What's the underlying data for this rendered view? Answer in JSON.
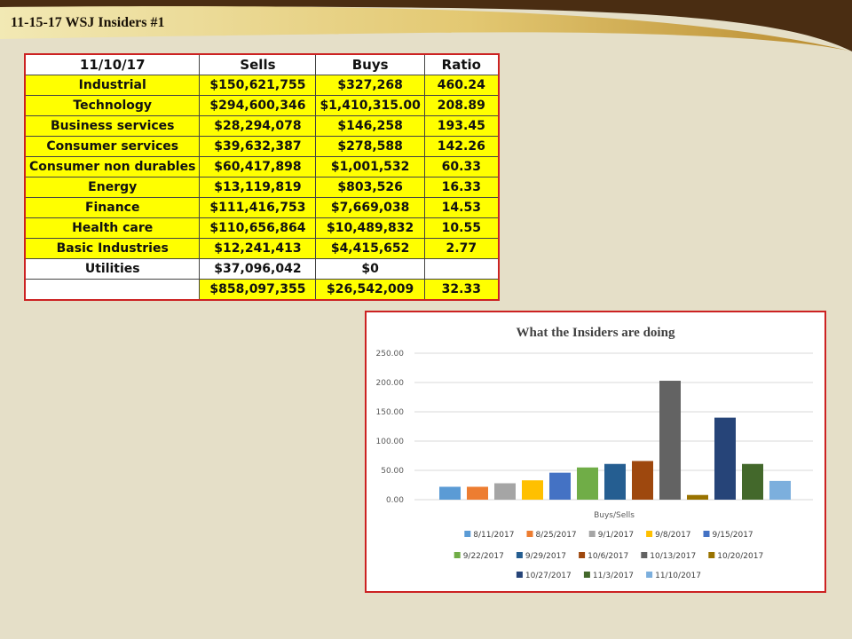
{
  "slide": {
    "title": "11-15-17 WSJ Insiders #1"
  },
  "table": {
    "headers": [
      "11/10/17",
      "Sells",
      "Buys",
      "Ratio"
    ],
    "rows": [
      [
        "Industrial",
        "$150,621,755",
        "$327,268",
        "460.24"
      ],
      [
        "Technology",
        "$294,600,346",
        "$1,410,315.00",
        "208.89"
      ],
      [
        "Business services",
        "$28,294,078",
        "$146,258",
        "193.45"
      ],
      [
        "Consumer services",
        "$39,632,387",
        "$278,588",
        "142.26"
      ],
      [
        "Consumer non durables",
        "$60,417,898",
        "$1,001,532",
        "60.33"
      ],
      [
        "Energy",
        "$13,119,819",
        "$803,526",
        "16.33"
      ],
      [
        "Finance",
        "$111,416,753",
        "$7,669,038",
        "14.53"
      ],
      [
        "Health care",
        "$110,656,864",
        "$10,489,832",
        "10.55"
      ],
      [
        "Basic Industries",
        "$12,241,413",
        "$4,415,652",
        "2.77"
      ],
      [
        "Utilities",
        "$37,096,042",
        "$0",
        ""
      ]
    ],
    "total": [
      "",
      "$858,097,355",
      "$26,542,009",
      "32.33"
    ],
    "colors": {
      "highlight": "#ffff00",
      "border": "#cc2222"
    }
  },
  "chart_data": {
    "type": "bar",
    "title": "What the Insiders are doing",
    "xlabel": "Buys/Sells",
    "ylabel": "",
    "categories": [
      "Buys/Sells"
    ],
    "ylim": [
      0,
      250
    ],
    "yticks": [
      "0.00",
      "50.00",
      "100.00",
      "150.00",
      "200.00",
      "250.00"
    ],
    "grid": true,
    "legend_position": "bottom",
    "series": [
      {
        "name": "8/11/2017",
        "values": [
          22
        ],
        "color": "#5b9bd5"
      },
      {
        "name": "8/25/2017",
        "values": [
          22
        ],
        "color": "#ed7d31"
      },
      {
        "name": "9/1/2017",
        "values": [
          28
        ],
        "color": "#a5a5a5"
      },
      {
        "name": "9/8/2017",
        "values": [
          33
        ],
        "color": "#ffc000"
      },
      {
        "name": "9/15/2017",
        "values": [
          46
        ],
        "color": "#4472c4"
      },
      {
        "name": "9/22/2017",
        "values": [
          55
        ],
        "color": "#70ad47"
      },
      {
        "name": "9/29/2017",
        "values": [
          61
        ],
        "color": "#255e91"
      },
      {
        "name": "10/6/2017",
        "values": [
          66
        ],
        "color": "#9e480e"
      },
      {
        "name": "10/13/2017",
        "values": [
          203
        ],
        "color": "#636363"
      },
      {
        "name": "10/20/2017",
        "values": [
          8
        ],
        "color": "#997300"
      },
      {
        "name": "10/27/2017",
        "values": [
          140
        ],
        "color": "#264478"
      },
      {
        "name": "11/3/2017",
        "values": [
          61
        ],
        "color": "#43682b"
      },
      {
        "name": "11/10/2017",
        "values": [
          32
        ],
        "color": "#7cafdd"
      }
    ]
  }
}
